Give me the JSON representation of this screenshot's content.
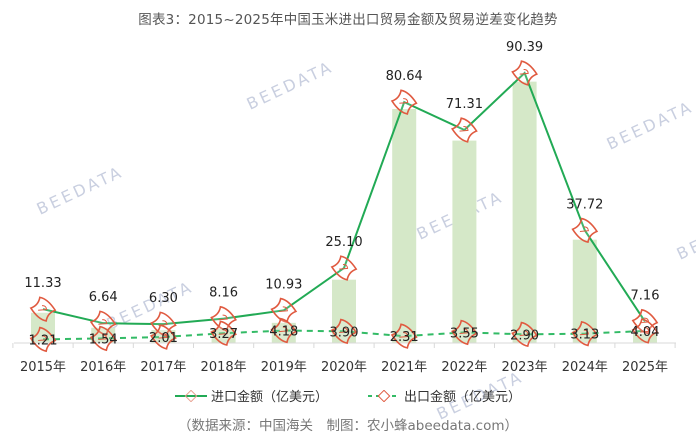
{
  "title": "图表3：2015~2025年中国玉米进出口贸易金额及贸易逆差变化趋势",
  "legend": {
    "import_label": "进口金额（亿美元）",
    "export_label": "出口金额（亿美元）"
  },
  "source": "（数据来源：中国海关　制图：农小蜂abeedata.com）",
  "watermark": "BEEDATA",
  "colors": {
    "import_line": "#22aa55",
    "export_line": "#33bb66",
    "bar": "#d5e8c8",
    "marker": "#e05a40",
    "axis": "#d9d9d9"
  },
  "chart_data": {
    "type": "bar+line",
    "title": "图表3：2015~2025年中国玉米进出口贸易金额及贸易逆差变化趋势",
    "xlabel": "",
    "ylabel": "",
    "categories": [
      "2015年",
      "2016年",
      "2017年",
      "2018年",
      "2019年",
      "2020年",
      "2021年",
      "2022年",
      "2023年",
      "2024年",
      "2025年"
    ],
    "series": [
      {
        "name": "进口金额（亿美元）",
        "type": "line",
        "style": "solid",
        "values": [
          11.33,
          6.64,
          6.3,
          8.16,
          10.93,
          25.1,
          80.64,
          71.31,
          90.39,
          37.72,
          7.16
        ]
      },
      {
        "name": "出口金额（亿美元）",
        "type": "line",
        "style": "dashed",
        "values": [
          1.21,
          1.54,
          2.01,
          3.27,
          4.18,
          3.9,
          2.31,
          3.55,
          2.9,
          3.13,
          4.04
        ]
      },
      {
        "name": "贸易逆差",
        "type": "bar",
        "values": [
          10.12,
          5.1,
          4.29,
          4.89,
          6.75,
          21.2,
          78.33,
          67.76,
          87.49,
          34.59,
          3.12
        ]
      }
    ],
    "ylim": [
      0,
      95
    ],
    "grid": false,
    "legend_position": "bottom"
  }
}
